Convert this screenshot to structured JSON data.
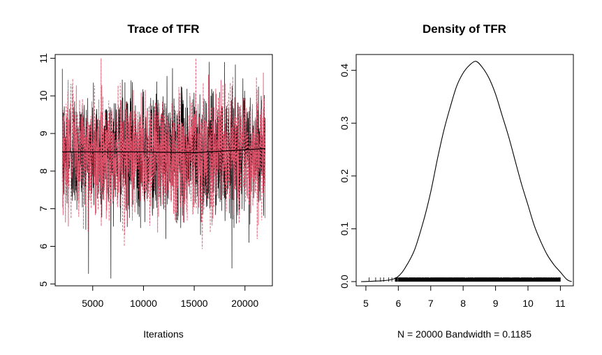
{
  "chart_data": [
    {
      "type": "line",
      "title": "Trace of TFR",
      "xlabel": "Iterations",
      "ylabel": "",
      "xlim": [
        1300,
        22700
      ],
      "ylim": [
        4.95,
        11.1
      ],
      "x_range": [
        2000,
        22000
      ],
      "x_ticks": [
        "5000",
        "10000",
        "15000",
        "20000"
      ],
      "y_ticks": [
        "5",
        "6",
        "7",
        "8",
        "9",
        "10",
        "11"
      ],
      "series": [
        {
          "style": "solid",
          "color": "#000000",
          "center": 8.5,
          "spread": 0.8,
          "min": 5.1,
          "max": 11.0
        },
        {
          "style": "dashed",
          "color": "#DF536B",
          "center": 8.5,
          "spread": 0.8,
          "min": 5.3,
          "max": 11.0
        }
      ],
      "running_mean": {
        "x": [
          2000,
          10000,
          15000,
          22000
        ],
        "y": [
          8.51,
          8.51,
          8.49,
          8.6
        ]
      }
    },
    {
      "type": "line",
      "title": "Density of TFR",
      "xlabel": "N = 20000   Bandwidth = 0.1185",
      "ylabel": "",
      "xlim": [
        4.7,
        11.4
      ],
      "ylim": [
        -0.008,
        0.43
      ],
      "x_ticks": [
        "5",
        "6",
        "7",
        "8",
        "9",
        "10",
        "11"
      ],
      "y_ticks": [
        "0.0",
        "0.1",
        "0.2",
        "0.3",
        "0.4"
      ],
      "density": {
        "x": [
          4.85,
          5.5,
          5.8,
          6.0,
          6.2,
          6.5,
          6.8,
          7.0,
          7.2,
          7.4,
          7.6,
          7.8,
          8.0,
          8.2,
          8.4,
          8.6,
          8.8,
          9.0,
          9.2,
          9.4,
          9.6,
          9.8,
          10.0,
          10.2,
          10.4,
          10.6,
          10.8,
          11.0,
          11.2,
          11.35
        ],
        "y": [
          0.0,
          0.0015,
          0.004,
          0.01,
          0.025,
          0.06,
          0.12,
          0.17,
          0.23,
          0.285,
          0.33,
          0.37,
          0.395,
          0.41,
          0.417,
          0.405,
          0.385,
          0.355,
          0.315,
          0.275,
          0.23,
          0.185,
          0.145,
          0.105,
          0.075,
          0.05,
          0.032,
          0.018,
          0.004,
          0.0
        ]
      },
      "rug": {
        "min": 5.1,
        "max": 11.0,
        "dense_min": 5.9,
        "dense_max": 11.0
      }
    }
  ]
}
